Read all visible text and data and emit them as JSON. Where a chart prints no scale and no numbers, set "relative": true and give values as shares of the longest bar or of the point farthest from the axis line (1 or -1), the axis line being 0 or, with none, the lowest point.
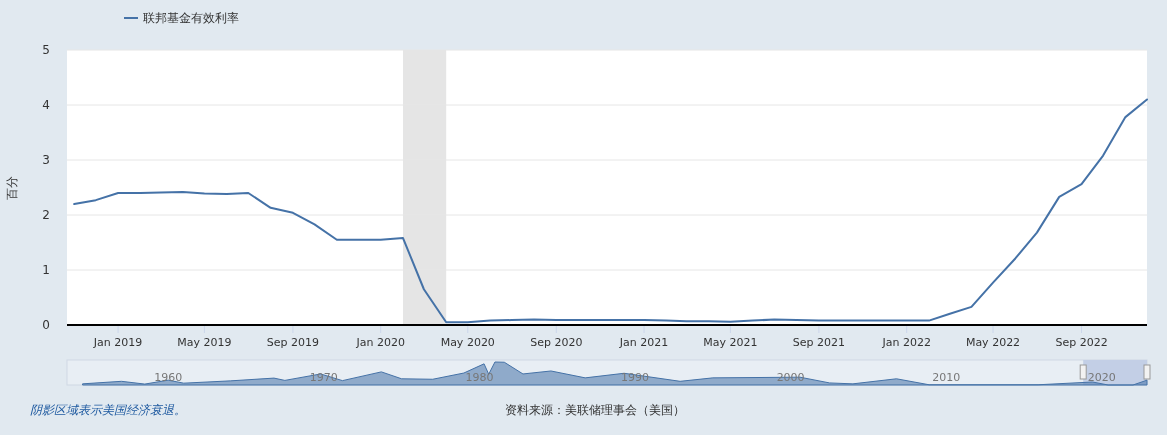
{
  "chart_data": [
    {
      "type": "line",
      "ylabel": "百分",
      "legend": "top left",
      "grid": "y",
      "x": [
        "2018-11",
        "2018-12",
        "2019-01",
        "2019-02",
        "2019-03",
        "2019-04",
        "2019-05",
        "2019-06",
        "2019-07",
        "2019-08",
        "2019-09",
        "2019-10",
        "2019-11",
        "2019-12",
        "2020-01",
        "2020-02",
        "2020-03",
        "2020-04",
        "2020-05",
        "2020-06",
        "2020-07",
        "2020-08",
        "2020-09",
        "2020-10",
        "2020-11",
        "2020-12",
        "2021-01",
        "2021-02",
        "2021-03",
        "2021-04",
        "2021-05",
        "2021-06",
        "2021-07",
        "2021-08",
        "2021-09",
        "2021-10",
        "2021-11",
        "2021-12",
        "2022-01",
        "2022-02",
        "2022-03",
        "2022-04",
        "2022-05",
        "2022-06",
        "2022-07",
        "2022-08",
        "2022-09",
        "2022-10",
        "2022-11",
        "2022-12"
      ],
      "series": [
        {
          "name": "联邦基金有效利率",
          "color": "#4572a7",
          "values": [
            2.2,
            2.27,
            2.4,
            2.4,
            2.41,
            2.42,
            2.39,
            2.38,
            2.4,
            2.13,
            2.04,
            1.83,
            1.55,
            1.55,
            1.55,
            1.58,
            0.65,
            0.05,
            0.05,
            0.08,
            0.09,
            0.1,
            0.09,
            0.09,
            0.09,
            0.09,
            0.09,
            0.08,
            0.07,
            0.07,
            0.06,
            0.08,
            0.1,
            0.09,
            0.08,
            0.08,
            0.08,
            0.08,
            0.08,
            0.08,
            0.2,
            0.33,
            0.77,
            1.21,
            1.68,
            2.33,
            2.56,
            3.08,
            3.78,
            4.1
          ]
        }
      ],
      "xlim": [
        "2018-10-22",
        "2022-12-01"
      ],
      "xticks": [
        {
          "value": "2019-01",
          "label": "Jan 2019"
        },
        {
          "value": "2019-05",
          "label": "May 2019"
        },
        {
          "value": "2019-09",
          "label": "Sep 2019"
        },
        {
          "value": "2020-01",
          "label": "Jan 2020"
        },
        {
          "value": "2020-05",
          "label": "May 2020"
        },
        {
          "value": "2020-09",
          "label": "Sep 2020"
        },
        {
          "value": "2021-01",
          "label": "Jan 2021"
        },
        {
          "value": "2021-05",
          "label": "May 2021"
        },
        {
          "value": "2021-09",
          "label": "Sep 2021"
        },
        {
          "value": "2022-01",
          "label": "Jan 2022"
        },
        {
          "value": "2022-05",
          "label": "May 2022"
        },
        {
          "value": "2022-09",
          "label": "Sep 2022"
        }
      ],
      "ylim": [
        0,
        5
      ],
      "yticks": [
        0,
        1,
        2,
        3,
        4,
        5
      ],
      "bands": [
        {
          "axis": "x",
          "from": "2020-02",
          "to": "2020-04",
          "color": "#e5e5e5"
        }
      ],
      "annotations": [
        "阴影区域表示美国经济衰退。",
        "资料来源：美联储理事会（美国）"
      ]
    },
    {
      "type": "area",
      "relative": true,
      "color": "#4572a7",
      "x": [
        1954.5,
        1957,
        1958.5,
        1960,
        1961,
        1964,
        1966.8,
        1967.5,
        1969.8,
        1971.2,
        1973.7,
        1975,
        1977,
        1979,
        1980.3,
        1980.6,
        1981,
        1981.6,
        1982.8,
        1984.6,
        1986.8,
        1989.3,
        1992.9,
        1995,
        2000.6,
        2002.5,
        2004,
        2006.8,
        2008.9,
        2015.9,
        2019.4,
        2020.4,
        2022,
        2022.9
      ],
      "values": [
        0.05,
        0.16,
        0.04,
        0.21,
        0.08,
        0.18,
        0.3,
        0.2,
        0.48,
        0.19,
        0.57,
        0.27,
        0.25,
        0.52,
        0.92,
        0.47,
        1,
        0.99,
        0.48,
        0.61,
        0.31,
        0.51,
        0.16,
        0.31,
        0.34,
        0.09,
        0.05,
        0.27,
        0.01,
        0.01,
        0.13,
        0,
        0,
        0.21
      ],
      "xlim": [
        1953.5,
        2022.9
      ],
      "xticks": [
        1960,
        1970,
        1980,
        1990,
        2000,
        2010,
        2020
      ],
      "bands": [
        {
          "axis": "x",
          "from": 2018.8,
          "to": 2022.9,
          "color": "#c3cfe6"
        }
      ]
    }
  ]
}
